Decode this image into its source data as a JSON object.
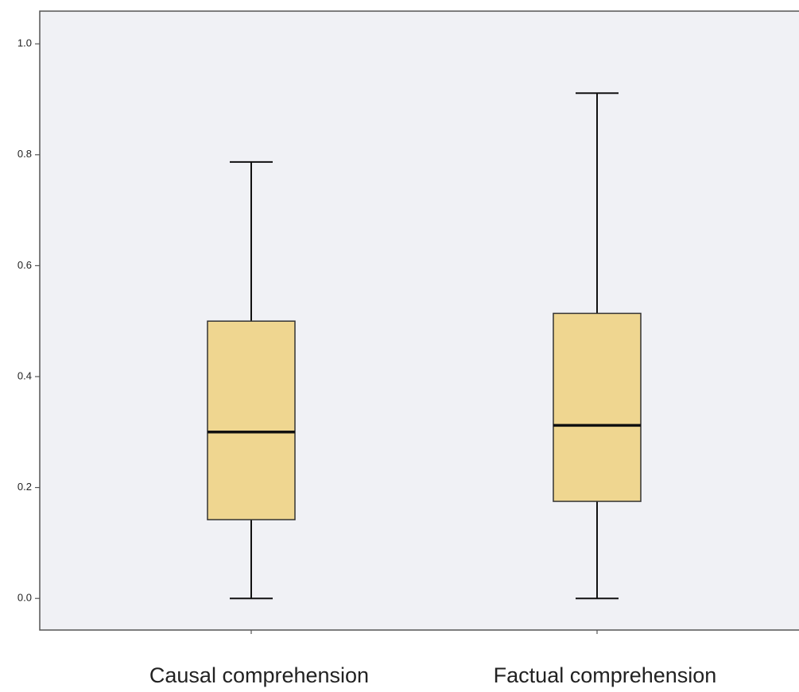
{
  "chart_data": {
    "type": "box",
    "categories": [
      "Causal comprehension",
      "Factual comprehension"
    ],
    "min": [
      0,
      0
    ],
    "q1": [
      0.142,
      0.175
    ],
    "median": [
      0.3,
      0.312
    ],
    "q3": [
      0.5,
      0.514
    ],
    "max": [
      0.787,
      0.911
    ],
    "color": "#efd690",
    "ylim": [
      -0.057,
      1.059
    ],
    "yticks": [
      {
        "value": 0,
        "label": "0.0"
      },
      0.2,
      0.4,
      0.6,
      0.8,
      {
        "value": 1,
        "label": "1.0"
      }
    ]
  }
}
